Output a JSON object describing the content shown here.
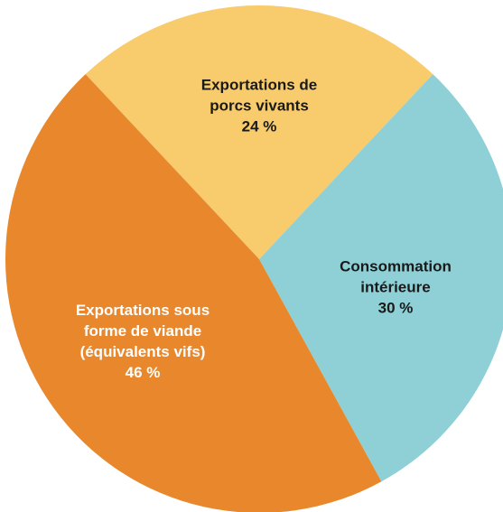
{
  "chart_data": {
    "type": "pie",
    "categories": [
      "Exportations de porcs vivants",
      "Consommation intérieure",
      "Exportations sous forme de viande (équivalents vifs)"
    ],
    "values": [
      24,
      30,
      46
    ],
    "value_labels": [
      "24 %",
      "30 %",
      "46 %"
    ],
    "colors": [
      "#f8cc6c",
      "#8ed0d6",
      "#e8872b"
    ]
  }
}
